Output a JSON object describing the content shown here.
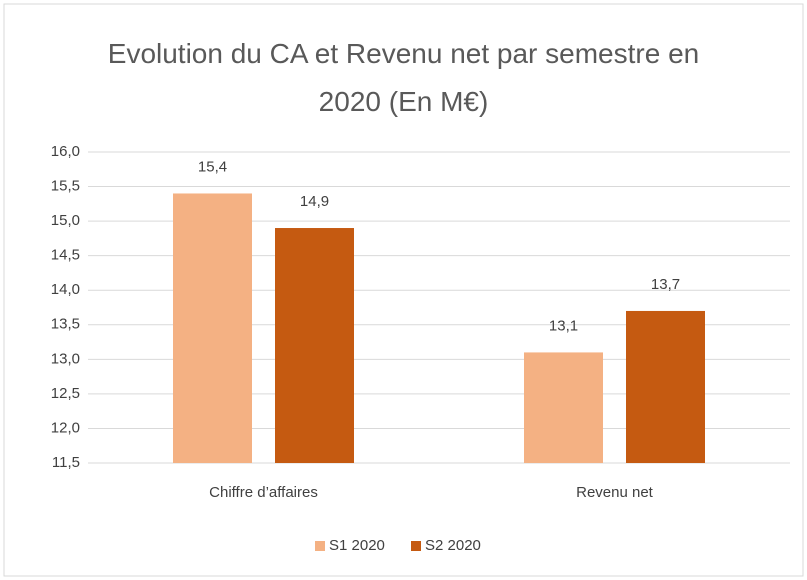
{
  "chart_data": {
    "type": "bar",
    "title": "Evolution du CA et Revenu net par semestre en 2020 (En M€)",
    "categories": [
      "Chiffre d’affaires",
      "Revenu net"
    ],
    "series": [
      {
        "name": "S1 2020",
        "color": "#f4b183",
        "values": [
          15.4,
          13.1
        ],
        "value_labels": [
          "15,4",
          "13,1"
        ]
      },
      {
        "name": "S2 2020",
        "color": "#c55a11",
        "values": [
          14.9,
          13.7
        ],
        "value_labels": [
          "14,9",
          "13,7"
        ]
      }
    ],
    "ylim": [
      11.5,
      16.0
    ],
    "yticks": [
      {
        "value": 11.5,
        "label": "11,5"
      },
      {
        "value": 12.0,
        "label": "12,0"
      },
      {
        "value": 12.5,
        "label": "12,5"
      },
      {
        "value": 13.0,
        "label": "13,0"
      },
      {
        "value": 13.5,
        "label": "13,5"
      },
      {
        "value": 14.0,
        "label": "14,0"
      },
      {
        "value": 14.5,
        "label": "14,5"
      },
      {
        "value": 15.0,
        "label": "15,0"
      },
      {
        "value": 15.5,
        "label": "15,5"
      },
      {
        "value": 16.0,
        "label": "16,0"
      }
    ],
    "grid": true,
    "legend": "bottom"
  }
}
